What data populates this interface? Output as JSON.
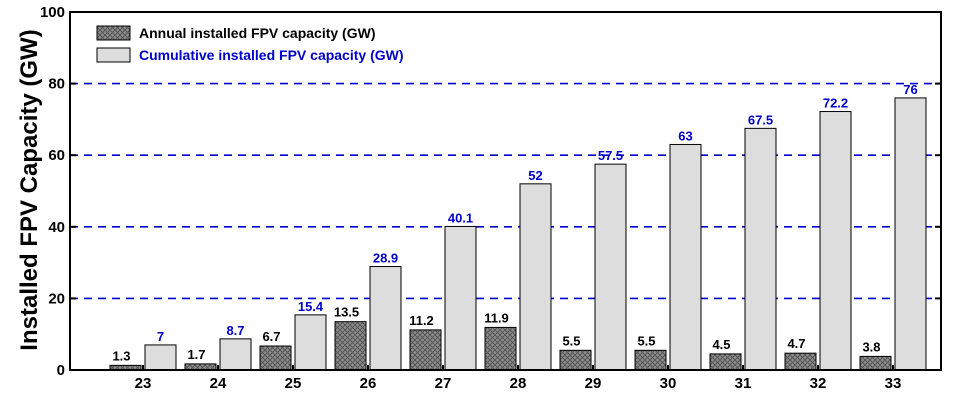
{
  "chart_data": {
    "type": "bar",
    "title": "",
    "xlabel": "",
    "ylabel": "Installed FPV Capacity (GW)",
    "ylim": [
      0,
      100
    ],
    "yticks": [
      0,
      20,
      40,
      60,
      80,
      100
    ],
    "grid": "dashed horizontal at 20, 40, 60, 80",
    "legend_placement": "top-left",
    "categories": [
      "23",
      "24",
      "25",
      "26",
      "27",
      "28",
      "29",
      "30",
      "31",
      "32",
      "33"
    ],
    "series": [
      {
        "name": "Annual installed FPV capacity (GW)",
        "values": [
          1.3,
          1.7,
          6.7,
          13.5,
          11.2,
          11.9,
          5.5,
          5.5,
          4.5,
          4.7,
          3.8
        ],
        "labels": [
          "1.3",
          "1.7",
          "6.7",
          "13.5",
          "11.2",
          "11.9",
          "5.5",
          "5.5",
          "4.5",
          "4.7",
          "3.8"
        ],
        "color": "#7a7a7a",
        "pattern": "crosshatch",
        "label_color": "#000000"
      },
      {
        "name": "Cumulative installed FPV capacity (GW)",
        "values": [
          7,
          8.7,
          15.4,
          28.9,
          40.1,
          52,
          57.5,
          63,
          67.5,
          72.2,
          76
        ],
        "labels": [
          "7",
          "8.7",
          "15.4",
          "28.9",
          "40.1",
          "52",
          "57.5",
          "63",
          "67.5",
          "72.2",
          "76"
        ],
        "color": "#dddddd",
        "label_color": "#0000cc"
      }
    ],
    "colors": {
      "grid": "#0000cc",
      "axis": "#000000",
      "legend_text_1": "#000000",
      "legend_text_2": "#0000cc"
    }
  }
}
